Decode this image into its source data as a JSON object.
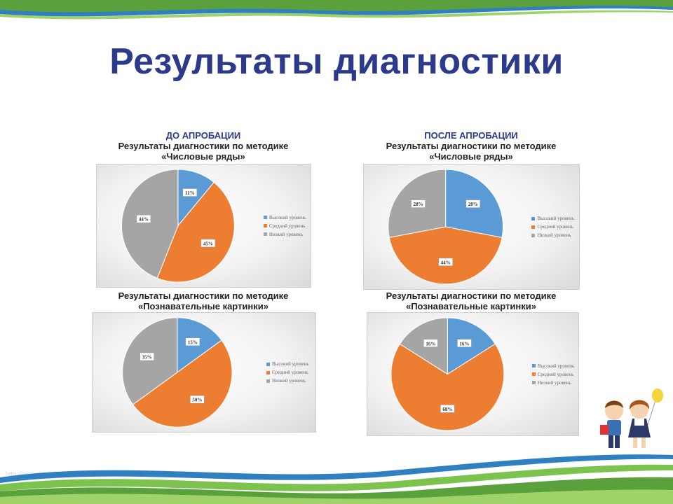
{
  "slide": {
    "title": "Результаты диагностики",
    "watermark": "http://aida.ucoz.ru"
  },
  "colors": {
    "high": "#5b9bd5",
    "medium": "#ed7d31",
    "low": "#a5a5a5",
    "title": "#2b3a8a"
  },
  "legend_labels": [
    "Высокий уровень",
    "Средний уровень",
    "Низкий уровень"
  ],
  "sections": [
    {
      "heading_top": "ДО АПРОБАЦИИ",
      "line1": "Результаты диагностики по методике",
      "line2": "«Числовые ряды»"
    },
    {
      "heading_top": "ПОСЛЕ АПРОБАЦИИ",
      "line1": "Результаты диагностики по методике",
      "line2": "«Числовые ряды»"
    },
    {
      "heading_top": "",
      "line1": "Результаты диагностики по методике",
      "line2": "«Познавательные картинки»"
    },
    {
      "heading_top": "",
      "line1": "Результаты диагностики по методике",
      "line2": "«Познавательные картинки»"
    }
  ],
  "chart_data": [
    {
      "type": "pie",
      "title": "",
      "categories": [
        "Высокий уровень",
        "Средний уровень",
        "Низкий уровень"
      ],
      "values": [
        11,
        45,
        44
      ],
      "labels": [
        "11%",
        "45%",
        "44%"
      ],
      "legend": "right"
    },
    {
      "type": "pie",
      "title": "",
      "categories": [
        "Высокий уровень",
        "Средний уровень",
        "Низкий уровень"
      ],
      "values": [
        28,
        44,
        28
      ],
      "labels": [
        "28%",
        "44%",
        "28%"
      ],
      "legend": "right"
    },
    {
      "type": "pie",
      "title": "",
      "categories": [
        "Высокий уровень",
        "Средний уровень",
        "Низкий уровень"
      ],
      "values": [
        15,
        50,
        35
      ],
      "labels": [
        "15%",
        "50%",
        "35%"
      ],
      "legend": "right"
    },
    {
      "type": "pie",
      "title": "",
      "categories": [
        "Высокий уровень",
        "Средний уровень",
        "Низкий уровень"
      ],
      "values": [
        16,
        68,
        16
      ],
      "labels": [
        "16%",
        "68%",
        "16%"
      ],
      "legend": "right"
    }
  ]
}
